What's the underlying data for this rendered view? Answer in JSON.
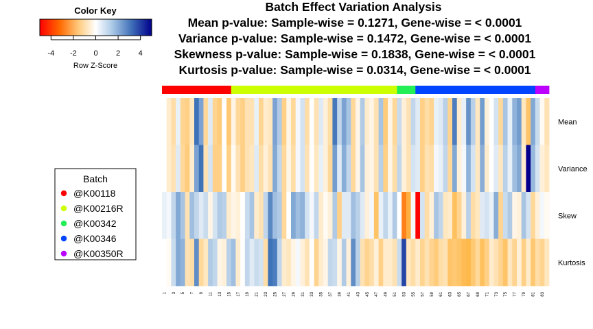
{
  "chart_data": {
    "type": "heatmap",
    "title_lines": [
      "Batch Effect Variation Analysis",
      "Mean p-value: Sample-wise = 0.1271, Gene-wise = < 0.0001",
      "Variance p-value: Sample-wise = 0.1472, Gene-wise = < 0.0001",
      "Skewness p-value: Sample-wise = 0.1838, Gene-wise = < 0.0001",
      "Kurtosis p-value: Sample-wise = 0.0314, Gene-wise = < 0.0001"
    ],
    "rows": [
      "Mean",
      "Variance",
      "Skew",
      "Kurtosis"
    ],
    "n_columns": 84,
    "column_tick_labels": [
      "1",
      "3",
      "5",
      "7",
      "9",
      "11",
      "13",
      "15",
      "17",
      "19",
      "21",
      "23",
      "25",
      "27",
      "29",
      "31",
      "33",
      "35",
      "37",
      "39",
      "41",
      "43",
      "45",
      "47",
      "49",
      "51",
      "53",
      "55",
      "57",
      "59",
      "61",
      "63",
      "65",
      "67",
      "69",
      "71",
      "73",
      "75",
      "77",
      "79",
      "81",
      "83"
    ],
    "color_key": {
      "title": "Color Key",
      "label": "Row Z-Score",
      "ticks": [
        "-4",
        "-2",
        "0",
        "2",
        "4"
      ],
      "range": [
        -5,
        5
      ],
      "low_color": "#ff0000",
      "mid_color": "#ffffff",
      "high_color": "#00008b"
    },
    "batches": [
      {
        "name": "@K00118",
        "color": "#ff0000",
        "count": 15
      },
      {
        "name": "@K00216R",
        "color": "#ccff00",
        "count": 36
      },
      {
        "name": "@K00342",
        "color": "#22ee55",
        "count": 4
      },
      {
        "name": "@K00346",
        "color": "#0044ff",
        "count": 26
      },
      {
        "name": "@K00350R",
        "color": "#bb00ff",
        "count": 3
      }
    ],
    "legend": {
      "title": "Batch",
      "position": "left"
    },
    "values": {
      "Mean": [
        0,
        -0.4,
        -0.7,
        0.2,
        -0.9,
        -1.0,
        -0.5,
        2.4,
        1.5,
        -0.8,
        0.3,
        -0.9,
        -1.1,
        0,
        -1.2,
        -0.2,
        -0.8,
        -1.0,
        -0.6,
        -0.6,
        0.2,
        -0.9,
        -0.4,
        -0.5,
        1.5,
        0.8,
        -1.0,
        -0.2,
        -0.8,
        0.1,
        0.4,
        -0.7,
        0,
        -0.6,
        0.3,
        -0.3,
        -0.7,
        2.3,
        0.6,
        1.5,
        0.9,
        -0.8,
        -0.2,
        0.8,
        -0.4,
        -0.2,
        -0.6,
        0.9,
        -1.1,
        -0.2,
        -0.8,
        0.5,
        -0.3,
        -0.6,
        0.6,
        0.3,
        -1.0,
        -0.7,
        -0.9,
        0.2,
        0.3,
        0.7,
        -0.9,
        2.2,
        -0.4,
        0.2,
        1.8,
        0.7,
        -0.5,
        1.6,
        -0.3,
        0,
        0.4,
        -0.8,
        0.9,
        0.2,
        1.2,
        1.6,
        -0.5,
        -1.3,
        1.4,
        0.5,
        -0.1,
        -0.6
      ],
      "Variance": [
        0,
        -0.4,
        -0.6,
        0.3,
        -0.8,
        -1.1,
        -0.4,
        1.5,
        2.4,
        -0.6,
        0.4,
        -1.0,
        -1.0,
        0,
        -1.0,
        -0.1,
        -0.6,
        -1.0,
        -0.6,
        -0.5,
        0.3,
        -0.7,
        -0.3,
        -0.6,
        1.4,
        0.6,
        -0.8,
        -0.2,
        -0.7,
        0.1,
        0.4,
        -0.6,
        0,
        -0.5,
        0.2,
        -0.3,
        -0.8,
        1.6,
        0.3,
        1.3,
        0.6,
        -0.8,
        -0.2,
        0.9,
        -0.3,
        -0.2,
        -0.6,
        0.7,
        -1.0,
        -0.2,
        -0.7,
        0.6,
        -0.3,
        -0.6,
        0.4,
        0.3,
        -1.0,
        -0.6,
        -0.7,
        0.1,
        0.2,
        0.6,
        -0.8,
        1.4,
        -0.3,
        0.1,
        1.2,
        0.4,
        -0.5,
        1.3,
        -0.4,
        0,
        0.3,
        -0.5,
        0.7,
        0.2,
        1.0,
        1.4,
        -0.4,
        4.7,
        1.1,
        0.4,
        -0.3,
        -0.5
      ],
      "Skew": [
        0.2,
        0.1,
        0.6,
        1.4,
        0.9,
        -0.6,
        1.0,
        0.6,
        0.3,
        0.5,
        -0.2,
        0.4,
        0.8,
        0.7,
        -0.4,
        -0.2,
        -0.3,
        0,
        0.5,
        0.9,
        -0.4,
        -0.6,
        0.6,
        2.0,
        1.0,
        0.8,
        -0.8,
        0,
        1.4,
        1.0,
        1.2,
        0.4,
        0.1,
        0.6,
        -0.4,
        -0.1,
        -0.3,
        0.8,
        -1.0,
        0.3,
        0.3,
        1.0,
        0.7,
        0.3,
        -0.3,
        0.1,
        -1.3,
        0.2,
        0.6,
        0.2,
        0.8,
        0,
        -2.7,
        -1.8,
        0.1,
        -3.7,
        0.4,
        -0.7,
        -0.3,
        0.9,
        0.6,
        -0.5,
        -0.4,
        -1.4,
        -0.9,
        -0.3,
        0.7,
        -0.7,
        -0.5,
        0.3,
        0.4,
        0.2,
        1.3,
        -0.9,
        0.5,
        0.8,
        -0.2,
        -0.3,
        0.9,
        0.4,
        -0.8,
        -0.3,
        0.1,
        -0.1
      ],
      "Kurtosis": [
        0,
        -0.1,
        0.5,
        1.4,
        1.2,
        -0.6,
        -0.7,
        1.9,
        -0.8,
        -0.5,
        0.8,
        0.6,
        -0.2,
        -0.3,
        0.7,
        1.0,
        -0.4,
        0,
        0.6,
        0.3,
        0.5,
        0.4,
        -0.7,
        2.4,
        2.2,
        0.6,
        -0.4,
        -0.5,
        -0.2,
        0.1,
        -0.3,
        -0.6,
        0,
        -0.9,
        -0.4,
        -0.2,
        0.6,
        0.5,
        -0.2,
        0.8,
        -0.3,
        1.9,
        0.7,
        -0.6,
        -0.9,
        -0.7,
        -0.3,
        -1.0,
        -0.4,
        -0.4,
        -0.6,
        0.5,
        3.3,
        -0.5,
        -0.7,
        -0.4,
        -0.9,
        -0.6,
        -0.9,
        -1.1,
        -0.7,
        -0.6,
        -1.3,
        -1.2,
        -1.3,
        -1.5,
        -1.6,
        -1.2,
        -0.8,
        -1.4,
        -1.0,
        -0.4,
        -0.6,
        -0.9,
        -1.3,
        -0.5,
        -0.9,
        -0.3,
        -1.0,
        -0.4,
        -1.2,
        -0.7,
        -0.9,
        -0.5
      ]
    }
  }
}
